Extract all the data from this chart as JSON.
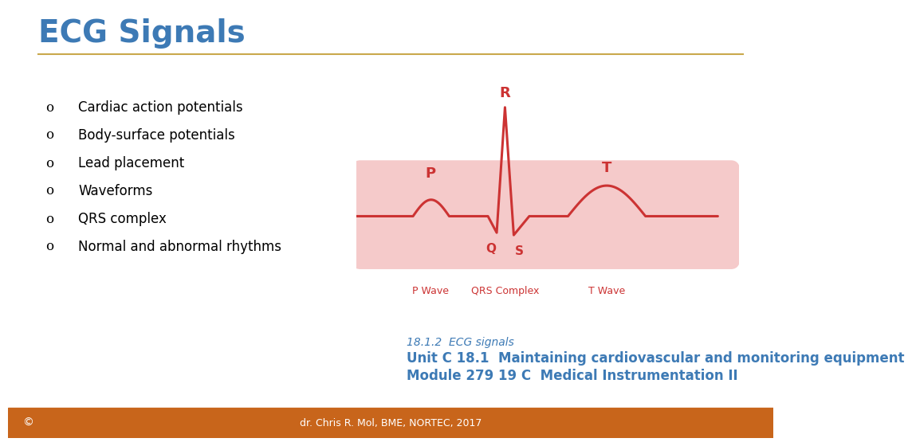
{
  "title": "ECG Signals",
  "title_color": "#3d7ab5",
  "title_fontsize": 28,
  "title_bold": true,
  "divider_color": "#c9a84c",
  "bg_color": "#ffffff",
  "footer_bg": "#c8651b",
  "footer_text": "dr. Chris R. Mol, BME, NORTEC, 2017",
  "footer_text_color": "#ffffff",
  "copyright_symbol": "©",
  "bullet_items": [
    "Cardiac action potentials",
    "Body-surface potentials",
    "Lead placement",
    "Waveforms",
    "QRS complex",
    "Normal and abnormal rhythms"
  ],
  "bullet_color": "#000000",
  "bullet_fontsize": 12,
  "sub_text1": "18.1.2  ECG signals",
  "sub_text2": "Unit C 18.1  Maintaining cardiovascular and monitoring equipment",
  "sub_text3": "Module 279 19 C  Medical Instrumentation II",
  "sub_text_color": "#3d7ab5",
  "sub_text_fontsize1": 10,
  "sub_text_fontsize2": 12,
  "ecg_line_color": "#cc3333",
  "ecg_bg_color": "#eea0a0",
  "label_color": "#cc3333"
}
